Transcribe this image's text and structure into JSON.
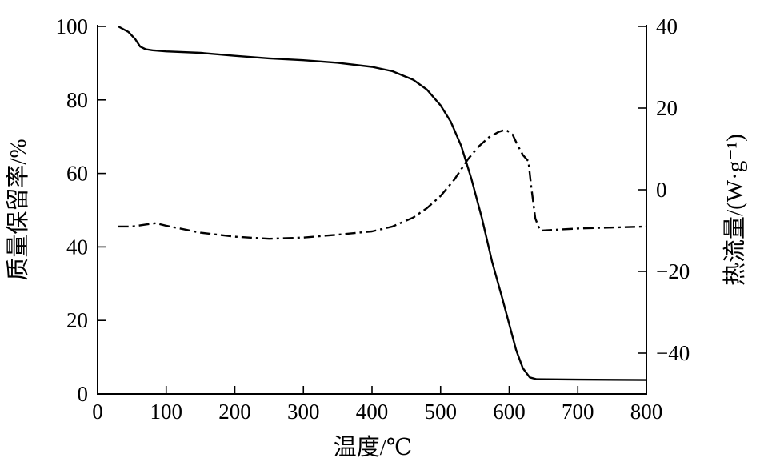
{
  "chart_data": {
    "type": "line",
    "title": "",
    "xlabel": "温度/℃",
    "ylabel_left": "质量保留率/%",
    "ylabel_right": "热流量/(W·g⁻¹)",
    "xlim": [
      0,
      800
    ],
    "ylim_left": [
      0,
      100
    ],
    "ylim_right": [
      -50,
      40
    ],
    "xticks": [
      "0",
      "100",
      "200",
      "300",
      "400",
      "500",
      "600",
      "700",
      "800"
    ],
    "yticks_left": [
      "0",
      "20",
      "40",
      "60",
      "80",
      "100"
    ],
    "yticks_right": [
      "−40",
      "−20",
      "0",
      "20",
      "40"
    ],
    "grid": false,
    "legend": "none",
    "series": [
      {
        "axis": "left",
        "style": "solid",
        "x": [
          30,
          45,
          55,
          62,
          70,
          80,
          100,
          150,
          200,
          250,
          300,
          350,
          400,
          430,
          460,
          480,
          500,
          515,
          530,
          545,
          560,
          575,
          590,
          600,
          610,
          620,
          630,
          640,
          700,
          800
        ],
        "y": [
          100,
          98.5,
          96.5,
          94.5,
          93.8,
          93.5,
          93.2,
          92.8,
          92,
          91.3,
          90.8,
          90.1,
          89,
          87.8,
          85.5,
          82.8,
          78.5,
          74,
          67.5,
          58.5,
          48,
          36,
          26,
          19,
          12,
          7,
          4.5,
          4,
          3.9,
          3.8
        ]
      },
      {
        "axis": "right",
        "style": "dashdot",
        "x": [
          30,
          50,
          70,
          85,
          100,
          150,
          200,
          250,
          300,
          350,
          400,
          430,
          460,
          480,
          500,
          520,
          540,
          555,
          570,
          585,
          595,
          605,
          612,
          620,
          628,
          632,
          638,
          645,
          700,
          800
        ],
        "y": [
          -9,
          -9,
          -8.5,
          -8.2,
          -8.8,
          -10.5,
          -11.5,
          -12,
          -11.7,
          -11,
          -10.2,
          -9,
          -6.8,
          -4.5,
          -1.5,
          2.5,
          7.5,
          10.5,
          12.8,
          14.2,
          14.7,
          13.5,
          11,
          8.5,
          7,
          1,
          -7,
          -10,
          -9.5,
          -9
        ]
      }
    ]
  }
}
